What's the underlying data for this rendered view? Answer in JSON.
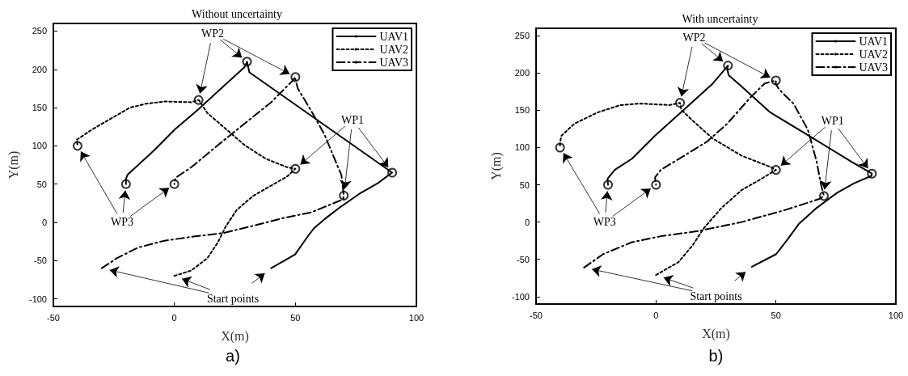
{
  "chart_data": [
    {
      "type": "line",
      "title": "Without uncertainty",
      "xlabel": "X(m)",
      "ylabel": "Y(m)",
      "xlim": [
        -50,
        100
      ],
      "xticks": [
        -50,
        0,
        50,
        100
      ],
      "ylim": [
        -110,
        260
      ],
      "yticks": [
        -100,
        -50,
        0,
        50,
        100,
        150,
        200,
        250
      ],
      "grid": false,
      "legend": "top right",
      "series": [
        {
          "name": "UAV1",
          "color": "#000000",
          "line_style": "solid",
          "marker": "none",
          "x": [
            40,
            49.9,
            54.3,
            57.6,
            62,
            68.6,
            76.3,
            84,
            89.5,
            90,
            31,
            30,
            29,
            20,
            10,
            0.4,
            -8.4,
            -19.4,
            -20,
            -20
          ],
          "values": [
            -60,
            -42,
            -22,
            -8,
            4,
            20,
            37,
            51,
            64,
            65,
            196,
            210,
            203,
            177,
            148,
            122,
            94,
            62,
            57,
            50
          ]
        },
        {
          "name": "UAV2",
          "color": "#000000",
          "line_style": "dotted",
          "marker": "none",
          "x": [
            0,
            7,
            13.6,
            18,
            21.3,
            25.7,
            32.3,
            40,
            46.6,
            50,
            46.6,
            37.8,
            29,
            20.2,
            13.6,
            10.3,
            10,
            7,
            -4,
            -11.7,
            -18.3,
            -26,
            -33.7,
            -40.3,
            -40
          ],
          "values": [
            -70,
            -63,
            -47,
            -26,
            -5,
            16,
            34,
            48,
            60,
            70,
            72,
            83,
            101,
            125,
            143,
            159,
            160,
            157,
            158,
            155,
            150,
            136,
            122,
            108,
            100
          ]
        },
        {
          "name": "UAV3",
          "color": "#000000",
          "line_style": "dashed",
          "marker": "none",
          "x": [
            -30,
            -23.8,
            -15,
            -4,
            7,
            20.2,
            34.5,
            45.5,
            56.5,
            69.7,
            70,
            69,
            67.5,
            62,
            56.5,
            51,
            50,
            50,
            48.8,
            40,
            29,
            18,
            7,
            0.4,
            0
          ],
          "values": [
            -60,
            -47,
            -33,
            -24,
            -19,
            -14,
            -3,
            6,
            13,
            30,
            35,
            62,
            73,
            115,
            146,
            175,
            187,
            190,
            185,
            157,
            129,
            101,
            72,
            58,
            50
          ]
        },
        {
          "type": "scatter",
          "color": "#000000",
          "marker": "circle",
          "x": [
            90,
            50,
            70,
            30,
            10,
            50,
            -20,
            -40,
            0
          ],
          "values": [
            65,
            70,
            35,
            210,
            160,
            190,
            50,
            100,
            50
          ]
        }
      ],
      "annotations": [
        {
          "text": "WP1",
          "x": 73.6,
          "y": 134
        },
        {
          "text": "WP2",
          "x": 15.8,
          "y": 247
        },
        {
          "text": "WP3",
          "x": -21.6,
          "y": 0
        },
        "Start points",
        "a)"
      ]
    },
    {
      "type": "line",
      "title": "With uncertainty",
      "xlabel": "X(m)",
      "ylabel": "Y(m)",
      "xlim": [
        -50,
        100
      ],
      "xticks": [
        -50,
        0,
        50,
        100
      ],
      "ylim": [
        -110,
        260
      ],
      "yticks": [
        -100,
        -50,
        0,
        50,
        100,
        150,
        200,
        250
      ],
      "grid": false,
      "legend": "top right",
      "series": [
        {
          "name": "UAV1",
          "color": "#000000",
          "line_style": "solid",
          "marker": "none",
          "x": [
            40,
            50.1,
            54.9,
            59.7,
            67,
            75.4,
            82.6,
            89.8,
            90,
            81.4,
            65.7,
            47.7,
            35.7,
            30.3,
            29.7,
            30,
            23.7,
            11.7,
            -0.4,
            -10,
            -17.2,
            -20.2,
            -20
          ],
          "values": [
            -60,
            -43,
            -23,
            -2,
            19,
            39,
            52,
            62,
            65,
            81,
            112,
            147,
            182,
            197,
            205,
            210,
            186,
            151,
            116,
            85,
            70,
            58,
            50
          ]
        },
        {
          "name": "UAV2",
          "color": "#000000",
          "line_style": "dotted",
          "marker": "none",
          "x": [
            0,
            9.3,
            15.3,
            20,
            27.3,
            35.7,
            42.9,
            50,
            47.7,
            35.7,
            23.7,
            15.3,
            10.5,
            10,
            5.6,
            -6.4,
            -14.8,
            -24.4,
            -34,
            -39.4,
            -40,
            -40
          ],
          "values": [
            -71,
            -54,
            -31,
            -8,
            19,
            43,
            56,
            70,
            74,
            89,
            112,
            136,
            151,
            160,
            157,
            159,
            157,
            147,
            132,
            116,
            107,
            100
          ]
        },
        {
          "name": "UAV3",
          "color": "#000000",
          "line_style": "dashed",
          "marker": "none",
          "x": [
            -30,
            -22,
            -10,
            2,
            17.7,
            35.7,
            53.7,
            68.1,
            70,
            68.8,
            67,
            63.3,
            57.3,
            51.3,
            49.9,
            50,
            45.3,
            39.3,
            29.7,
            21.3,
            11.7,
            2,
            -0.4,
            0
          ],
          "values": [
            -61,
            -43,
            -27,
            -19,
            -12,
            0,
            16,
            31,
            35,
            50,
            81,
            124,
            159,
            178,
            186,
            190,
            186,
            167,
            132,
            108,
            89,
            70,
            60,
            50
          ]
        },
        {
          "type": "scatter",
          "color": "#000000",
          "marker": "circle",
          "x": [
            90,
            50,
            70,
            30,
            10,
            50,
            -20,
            -40,
            0
          ],
          "values": [
            65,
            70,
            35,
            210,
            160,
            190,
            50,
            100,
            50
          ]
        }
      ],
      "annotations": [
        {
          "text": "WP1",
          "x": 73.6,
          "y": 136
        },
        {
          "text": "WP2",
          "x": 15.9,
          "y": 248
        },
        {
          "text": "WP3",
          "x": -21.4,
          "y": 0
        },
        "Start points",
        "b)"
      ]
    }
  ]
}
